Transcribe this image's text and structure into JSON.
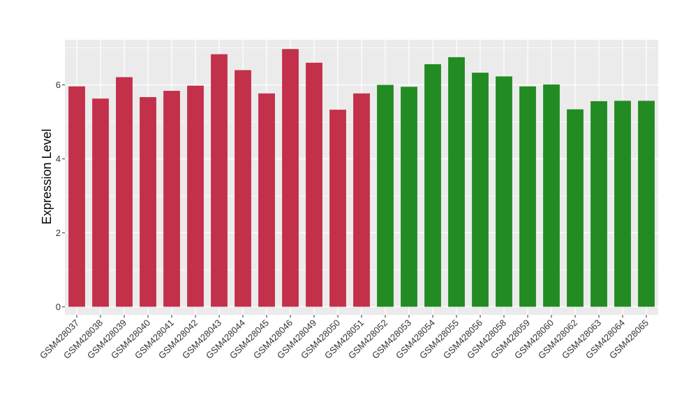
{
  "chart_data": {
    "type": "bar",
    "ylabel": "Expression Level",
    "xlabel": "",
    "ylim": [
      -0.22,
      7.22
    ],
    "yticks": [
      0,
      2,
      4,
      6
    ],
    "grid": true,
    "background": "#EBEBEB",
    "categories": [
      "GSM428037",
      "GSM428038",
      "GSM428039",
      "GSM428040",
      "GSM428041",
      "GSM428042",
      "GSM428043",
      "GSM428044",
      "GSM428045",
      "GSM428046",
      "GSM428049",
      "GSM428050",
      "GSM428051",
      "GSM428052",
      "GSM428053",
      "GSM428054",
      "GSM428055",
      "GSM428056",
      "GSM428058",
      "GSM428059",
      "GSM428060",
      "GSM428062",
      "GSM428063",
      "GSM428064",
      "GSM428065"
    ],
    "values": [
      5.96,
      5.63,
      6.21,
      5.67,
      5.84,
      5.98,
      6.83,
      6.4,
      5.77,
      6.97,
      6.6,
      5.33,
      5.77,
      6.0,
      5.95,
      6.56,
      6.75,
      6.33,
      6.23,
      5.96,
      6.01,
      5.34,
      5.56,
      5.57,
      5.57
    ],
    "groups": [
      0,
      0,
      0,
      0,
      0,
      0,
      0,
      0,
      0,
      0,
      0,
      0,
      0,
      1,
      1,
      1,
      1,
      1,
      1,
      1,
      1,
      1,
      1,
      1,
      1
    ],
    "colors": [
      "#C3304A",
      "#228B22"
    ]
  }
}
